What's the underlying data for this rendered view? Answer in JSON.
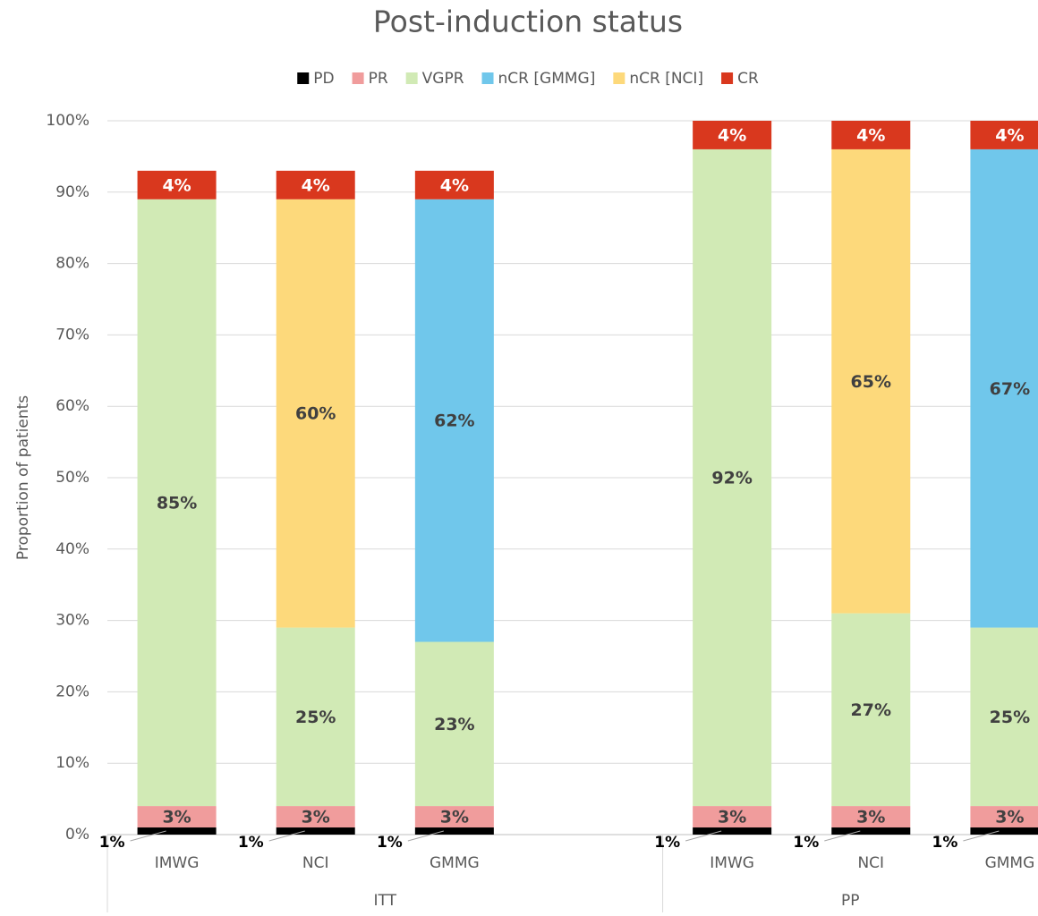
{
  "chart_data": {
    "type": "stacked-bar",
    "title": "Post-induction status",
    "y_label": "Proportion of patients",
    "groups": [
      {
        "label": "ITT",
        "categories": [
          "IMWG",
          "NCI",
          "GMMG",
          null
        ]
      },
      {
        "label": "PP",
        "categories": [
          "IMWG",
          "NCI",
          "GMMG"
        ]
      }
    ],
    "series": [
      {
        "name": "PD",
        "color": "#000000",
        "values": [
          1,
          1,
          1,
          null,
          1,
          1,
          1
        ],
        "value_labels": [
          "1%",
          "1%",
          "1%",
          null,
          "1%",
          "1%",
          "1%"
        ]
      },
      {
        "name": "PR",
        "color": "#f09c9c",
        "values": [
          3,
          3,
          3,
          null,
          3,
          3,
          3
        ],
        "value_labels": [
          "3%",
          "3%",
          "3%",
          null,
          "3%",
          "3%",
          "3%"
        ]
      },
      {
        "name": "VGPR",
        "color": "#d1eab5",
        "values": [
          85,
          25,
          23,
          null,
          92,
          27,
          25
        ],
        "value_labels": [
          "85%",
          "25%",
          "23%",
          null,
          "92%",
          "27%",
          "25%"
        ]
      },
      {
        "name": "nCR [GMMG]",
        "color": "#70c7eb",
        "values": [
          null,
          null,
          62,
          null,
          null,
          null,
          67
        ],
        "value_labels": [
          null,
          null,
          "62%",
          null,
          null,
          null,
          "67%"
        ]
      },
      {
        "name": "nCR [NCI]",
        "color": "#fdd97b",
        "values": [
          null,
          60,
          null,
          null,
          null,
          65,
          null
        ],
        "value_labels": [
          null,
          "60%",
          null,
          null,
          null,
          "65%",
          null
        ]
      },
      {
        "name": "CR",
        "color": "#d9381e",
        "values": [
          4,
          4,
          4,
          null,
          4,
          4,
          4
        ],
        "value_labels": [
          "4%",
          "4%",
          "4%",
          null,
          "4%",
          "4%",
          "4%"
        ]
      }
    ],
    "ylim": [
      0,
      100
    ],
    "yticks": [
      {
        "value": 0,
        "label": "0%"
      },
      {
        "value": 10,
        "label": "10%"
      },
      {
        "value": 20,
        "label": "20%"
      },
      {
        "value": 30,
        "label": "30%"
      },
      {
        "value": 40,
        "label": "40%"
      },
      {
        "value": 50,
        "label": "50%"
      },
      {
        "value": 60,
        "label": "60%"
      },
      {
        "value": 70,
        "label": "70%"
      },
      {
        "value": 80,
        "label": "80%"
      },
      {
        "value": 90,
        "label": "90%"
      },
      {
        "value": 100,
        "label": "100%"
      }
    ],
    "grid": true,
    "legend": "top"
  }
}
